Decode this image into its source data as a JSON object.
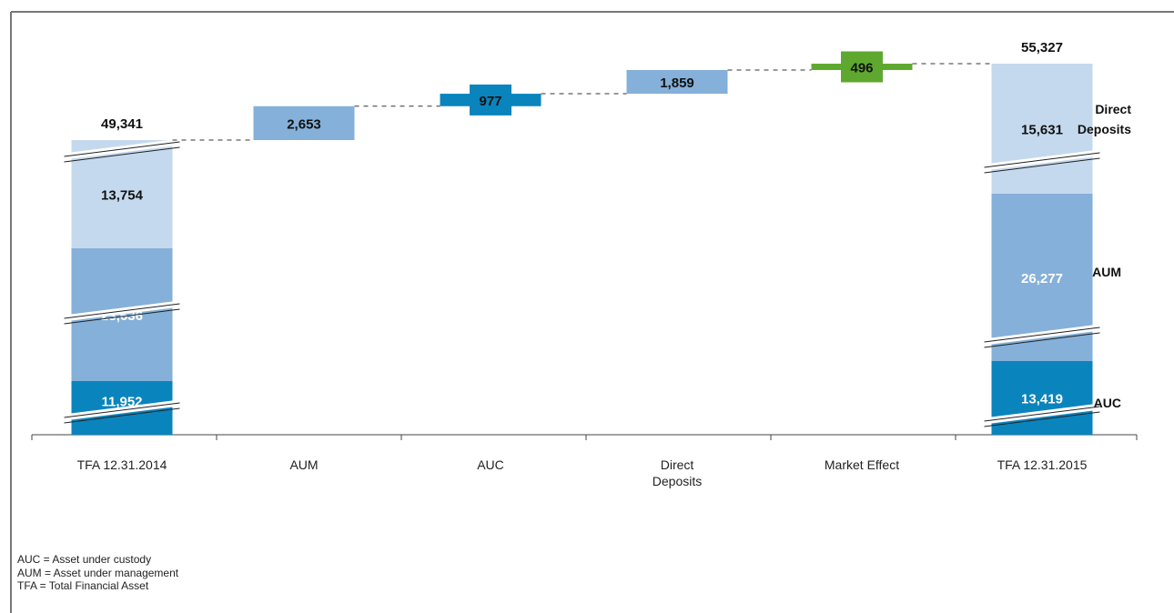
{
  "chart_data": {
    "type": "bar",
    "subtype": "waterfall",
    "categories": [
      [
        "TFA 12.31.2014"
      ],
      [
        "AUM"
      ],
      [
        "AUC"
      ],
      [
        "Direct",
        "Deposits"
      ],
      [
        "Market Effect"
      ],
      [
        "TFA 12.31.2015"
      ]
    ],
    "start": {
      "total": 49341,
      "total_label": "49,341",
      "segments": [
        {
          "name": "AUC",
          "value": 11952,
          "label": "11,952"
        },
        {
          "name": "AUM",
          "value": 23636,
          "label": "23,636"
        },
        {
          "name": "Direct Deposits",
          "value": 13754,
          "label": "13,754"
        }
      ]
    },
    "steps": [
      {
        "name": "AUM",
        "value": 2653,
        "label": "2,653"
      },
      {
        "name": "AUC",
        "value": 977,
        "label": "977"
      },
      {
        "name": "Direct Deposits",
        "value": 1859,
        "label": "1,859"
      },
      {
        "name": "Market Effect",
        "value": 496,
        "label": "496"
      }
    ],
    "end": {
      "total": 55327,
      "total_label": "55,327",
      "segments": [
        {
          "name": "AUC",
          "value": 13419,
          "label": "13,419"
        },
        {
          "name": "AUM",
          "value": 26277,
          "label": "26,277"
        },
        {
          "name": "Direct Deposits",
          "value": 15631,
          "label": "15,631"
        }
      ]
    },
    "segment_labels": [
      [
        "AUC"
      ],
      [
        "AUM"
      ],
      [
        "Direct",
        "Deposits"
      ]
    ],
    "axis_break": true,
    "grid": false,
    "legend": "right-side labels"
  },
  "colors": {
    "auc": "#0a84bd",
    "aum": "#85b0d9",
    "direct_deposits": "#c5d9ee",
    "market_effect": "#5ea82f",
    "connector": "#333333",
    "axis": "#444444"
  },
  "footnotes": [
    "AUC = Asset under custody",
    "AUM = Asset under management",
    "TFA = Total Financial Asset"
  ]
}
